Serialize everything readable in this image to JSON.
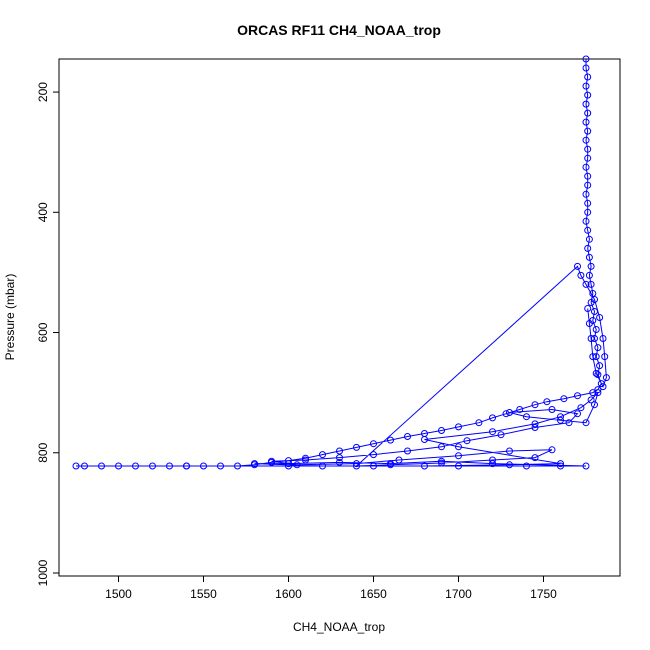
{
  "chart_data": {
    "type": "scatter",
    "title": "ORCAS RF11 CH4_NOAA_trop",
    "xlabel": "CH4_NOAA_trop",
    "ylabel": "Pressure (mbar)",
    "xlim": [
      1465,
      1795
    ],
    "ylim": [
      1005,
      145
    ],
    "y_inverted": true,
    "x_ticks": [
      1500,
      1550,
      1600,
      1650,
      1700,
      1750
    ],
    "x_tick_labels": [
      "1500",
      "1550",
      "1600",
      "1650",
      "1700",
      "1750"
    ],
    "y_ticks": [
      200,
      400,
      600,
      800,
      1000
    ],
    "y_tick_labels": [
      "200",
      "400",
      "600",
      "800",
      "1000"
    ],
    "marker": "open-circle",
    "connected": true,
    "series_color": "#0000ff",
    "grid": false,
    "legend": "none",
    "series": [
      {
        "points": [
          [
            1775,
            145
          ],
          [
            1775,
            160
          ],
          [
            1776,
            175
          ],
          [
            1775,
            190
          ],
          [
            1776,
            205
          ],
          [
            1775,
            220
          ],
          [
            1776,
            235
          ],
          [
            1775,
            250
          ],
          [
            1776,
            265
          ],
          [
            1775,
            280
          ],
          [
            1776,
            295
          ],
          [
            1776,
            310
          ],
          [
            1775,
            325
          ],
          [
            1776,
            340
          ],
          [
            1776,
            355
          ],
          [
            1775,
            370
          ],
          [
            1776,
            385
          ],
          [
            1776,
            400
          ],
          [
            1775,
            415
          ],
          [
            1776,
            430
          ],
          [
            1777,
            445
          ],
          [
            1776,
            460
          ],
          [
            1777,
            475
          ],
          [
            1778,
            490
          ],
          [
            1777,
            505
          ],
          [
            1778,
            520
          ],
          [
            1779,
            535
          ],
          [
            1778,
            550
          ],
          [
            1780,
            565
          ],
          [
            1779,
            580
          ],
          [
            1781,
            595
          ],
          [
            1780,
            610
          ],
          [
            1782,
            625
          ],
          [
            1781,
            640
          ],
          [
            1783,
            655
          ],
          [
            1782,
            670
          ],
          [
            1784,
            685
          ],
          [
            1782,
            695
          ],
          [
            1779,
            700
          ],
          [
            1770,
            705
          ],
          [
            1762,
            710
          ],
          [
            1752,
            715
          ],
          [
            1745,
            720
          ],
          [
            1736,
            728
          ],
          [
            1728,
            735
          ],
          [
            1720,
            742
          ],
          [
            1712,
            750
          ],
          [
            1700,
            757
          ],
          [
            1690,
            763
          ],
          [
            1680,
            768
          ],
          [
            1670,
            773
          ],
          [
            1660,
            779
          ],
          [
            1650,
            785
          ],
          [
            1640,
            791
          ],
          [
            1630,
            797
          ],
          [
            1620,
            803
          ],
          [
            1610,
            809
          ],
          [
            1600,
            813
          ],
          [
            1590,
            816
          ],
          [
            1580,
            820
          ],
          [
            1570,
            822
          ],
          [
            1560,
            822
          ],
          [
            1550,
            822
          ],
          [
            1540,
            822
          ],
          [
            1530,
            822
          ],
          [
            1520,
            822
          ],
          [
            1510,
            822
          ],
          [
            1500,
            822
          ],
          [
            1490,
            822
          ],
          [
            1480,
            822
          ],
          [
            1475,
            822
          ],
          [
            1540,
            822
          ],
          [
            1600,
            822
          ],
          [
            1650,
            822
          ],
          [
            1700,
            822
          ],
          [
            1740,
            822
          ],
          [
            1760,
            822
          ],
          [
            1775,
            822
          ],
          [
            1720,
            818
          ],
          [
            1690,
            814
          ],
          [
            1660,
            818
          ],
          [
            1630,
            816
          ],
          [
            1600,
            818
          ],
          [
            1580,
            818
          ],
          [
            1620,
            822
          ],
          [
            1680,
            822
          ],
          [
            1730,
            820
          ],
          [
            1760,
            818
          ],
          [
            1700,
            790
          ],
          [
            1680,
            778
          ],
          [
            1720,
            765
          ],
          [
            1745,
            752
          ],
          [
            1760,
            740
          ],
          [
            1772,
            725
          ],
          [
            1778,
            712
          ],
          [
            1782,
            700
          ],
          [
            1780,
            720
          ],
          [
            1775,
            750
          ],
          [
            1760,
            746
          ],
          [
            1740,
            740
          ],
          [
            1730,
            733
          ],
          [
            1755,
            728
          ],
          [
            1770,
            735
          ],
          [
            1765,
            750
          ],
          [
            1745,
            758
          ],
          [
            1725,
            770
          ],
          [
            1705,
            780
          ],
          [
            1690,
            790
          ],
          [
            1670,
            797
          ],
          [
            1650,
            803
          ],
          [
            1630,
            808
          ],
          [
            1610,
            812
          ],
          [
            1590,
            814
          ],
          [
            1605,
            820
          ],
          [
            1640,
            818
          ],
          [
            1665,
            812
          ],
          [
            1700,
            805
          ],
          [
            1730,
            797
          ],
          [
            1755,
            795
          ],
          [
            1745,
            808
          ],
          [
            1720,
            812
          ],
          [
            1690,
            817
          ],
          [
            1660,
            820
          ],
          [
            1640,
            822
          ],
          [
            1770,
            490
          ],
          [
            1772,
            505
          ],
          [
            1775,
            520
          ],
          [
            1780,
            545
          ],
          [
            1783,
            575
          ],
          [
            1785,
            610
          ],
          [
            1786,
            640
          ],
          [
            1787,
            675
          ],
          [
            1785,
            690
          ],
          [
            1781,
            668
          ],
          [
            1779,
            640
          ],
          [
            1778,
            610
          ],
          [
            1777,
            585
          ],
          [
            1776,
            560
          ]
        ]
      }
    ]
  }
}
